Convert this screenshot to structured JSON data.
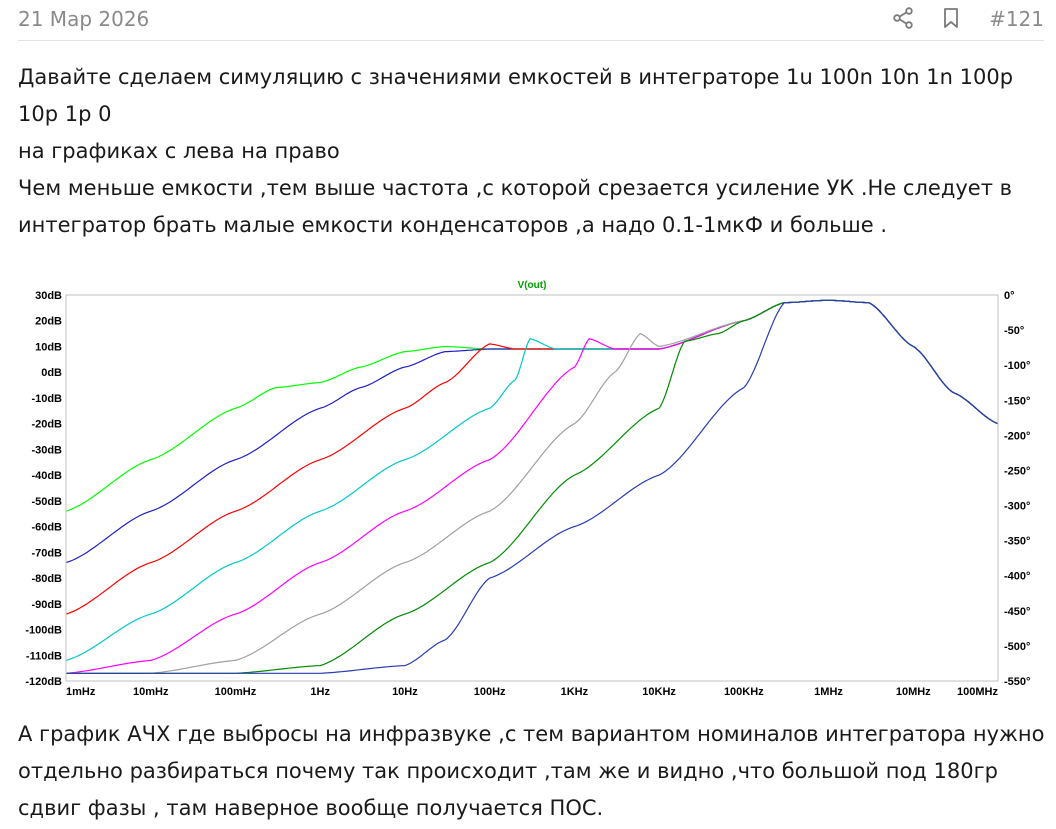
{
  "post": {
    "date": "21 Мар 2026",
    "number": "#121",
    "paragraph1": "Давайте сделаем симуляцию с значениями емкостей в интеграторе 1u 100n 10n 1n 100p 10p 1p 0\nна графиках с лева на право\nЧем меньше емкости ,тем выше частота ,с которой срезается усиление УК .Не следует в интегратор брать малые емкости конденсаторов ,а надо 0.1-1мкФ и больше .",
    "paragraph2": "А график АЧХ где выбросы на инфразвуке ,с тем вариантом номиналов интегратора нужно отдельно разбираться почему так происходит ,там же и видно ,что большой под 180гр сдвиг фазы , там наверное вообще получается ПОС."
  },
  "icons": {
    "share": "share-icon",
    "bookmark": "bookmark-icon"
  },
  "chart_data": {
    "type": "line",
    "title": "V(out)",
    "x_scale": "log",
    "xlim": [
      0.001,
      100000000
    ],
    "x_ticks": [
      0.001,
      0.01,
      0.1,
      1,
      10,
      100,
      1000,
      10000,
      100000,
      1000000,
      10000000,
      100000000
    ],
    "x_tick_labels": [
      "1mHz",
      "10mHz",
      "100mHz",
      "1Hz",
      "10Hz",
      "100Hz",
      "1KHz",
      "10KHz",
      "100KHz",
      "1MHz",
      "10MHz",
      "100MHz"
    ],
    "ylim": [
      -120,
      30
    ],
    "y_ticks": [
      30,
      20,
      10,
      0,
      -10,
      -20,
      -30,
      -40,
      -50,
      -60,
      -70,
      -80,
      -90,
      -100,
      -110,
      -120
    ],
    "y_tick_labels": [
      "30dB",
      "20dB",
      "10dB",
      "0dB",
      "-10dB",
      "-20dB",
      "-30dB",
      "-40dB",
      "-50dB",
      "-60dB",
      "-70dB",
      "-80dB",
      "-90dB",
      "-100dB",
      "-110dB",
      "-120dB"
    ],
    "y2lim": [
      -550,
      0
    ],
    "y2_ticks": [
      0,
      -50,
      -100,
      -150,
      -200,
      -250,
      -300,
      -350,
      -400,
      -450,
      -500,
      -550
    ],
    "y2_tick_labels": [
      "0°",
      "-50°",
      "-100°",
      "-150°",
      "-200°",
      "-250°",
      "-300°",
      "-350°",
      "-400°",
      "-450°",
      "-500°",
      "-550°"
    ],
    "grid": false,
    "background": "#ffffff",
    "series": [
      {
        "color": "#00ff00",
        "line": "solid",
        "axis": "dB",
        "x": [
          0.001,
          0.01,
          0.1,
          0.3,
          1,
          3,
          10,
          30,
          100,
          1000,
          10000,
          100000,
          300000,
          1000000,
          3000000,
          10000000,
          30000000,
          100000000
        ],
        "y": [
          -54,
          -34,
          -14,
          -6,
          -4,
          2,
          8,
          10,
          9,
          9,
          9,
          20,
          27,
          28,
          27,
          10,
          -8,
          -20
        ]
      },
      {
        "color": "#1e1ec8",
        "line": "solid",
        "axis": "dB",
        "x": [
          0.001,
          0.01,
          0.1,
          1,
          3,
          10,
          30,
          100,
          1000,
          10000,
          100000,
          300000,
          1000000,
          3000000,
          10000000,
          30000000,
          100000000
        ],
        "y": [
          -74,
          -54,
          -34,
          -14,
          -6,
          2,
          8,
          9,
          9,
          9,
          20,
          27,
          28,
          27,
          10,
          -8,
          -20
        ]
      },
      {
        "color": "#ff0000",
        "line": "solid",
        "axis": "dB",
        "x": [
          0.001,
          0.01,
          0.1,
          1,
          10,
          30,
          100,
          200,
          1000,
          10000,
          100000,
          300000,
          1000000,
          3000000,
          10000000,
          30000000,
          100000000
        ],
        "y": [
          -94,
          -74,
          -54,
          -34,
          -14,
          -4,
          11,
          9,
          9,
          9,
          20,
          27,
          28,
          27,
          10,
          -8,
          -20
        ]
      },
      {
        "color": "#00c8c8",
        "line": "solid",
        "axis": "dB",
        "x": [
          0.001,
          0.01,
          0.1,
          1,
          10,
          100,
          200,
          300,
          600,
          1000,
          10000,
          100000,
          300000,
          1000000,
          3000000,
          10000000,
          30000000,
          100000000
        ],
        "y": [
          -112,
          -94,
          -74,
          -54,
          -34,
          -14,
          -3,
          13,
          9,
          9,
          9,
          20,
          27,
          28,
          27,
          10,
          -8,
          -20
        ]
      },
      {
        "color": "#ff00ff",
        "line": "solid",
        "axis": "dB",
        "x": [
          0.001,
          0.01,
          0.1,
          1,
          10,
          100,
          1000,
          1500,
          3000,
          10000,
          100000,
          300000,
          1000000,
          3000000,
          10000000,
          30000000,
          100000000
        ],
        "y": [
          -117,
          -112,
          -94,
          -74,
          -54,
          -34,
          2,
          13,
          9,
          9,
          20,
          27,
          28,
          27,
          10,
          -8,
          -20
        ]
      },
      {
        "color": "#a0a0a0",
        "line": "solid",
        "axis": "dB",
        "x": [
          0.001,
          0.01,
          0.1,
          1,
          10,
          100,
          1000,
          3000,
          6000,
          10000,
          100000,
          300000,
          1000000,
          3000000,
          10000000,
          30000000,
          100000000
        ],
        "y": [
          -117,
          -117,
          -112,
          -94,
          -74,
          -54,
          -20,
          0,
          15,
          10,
          20,
          27,
          28,
          27,
          10,
          -8,
          -20
        ]
      },
      {
        "color": "#008c00",
        "line": "solid",
        "axis": "dB",
        "x": [
          0.001,
          0.1,
          1,
          10,
          100,
          1000,
          10000,
          20000,
          50000,
          100000,
          300000,
          1000000,
          3000000,
          10000000,
          30000000,
          100000000
        ],
        "y": [
          -117,
          -117,
          -114,
          -94,
          -74,
          -40,
          -14,
          12,
          15,
          20,
          27,
          28,
          27,
          10,
          -8,
          -20
        ]
      },
      {
        "color": "#283cb4",
        "line": "solid",
        "axis": "dB",
        "x": [
          0.001,
          1,
          10,
          30,
          100,
          1000,
          10000,
          100000,
          300000,
          1000000,
          3000000,
          10000000,
          30000000,
          100000000
        ],
        "y": [
          -117,
          -117,
          -114,
          -104,
          -80,
          -60,
          -40,
          -6,
          27,
          28,
          27,
          10,
          -8,
          -20
        ]
      }
    ]
  }
}
